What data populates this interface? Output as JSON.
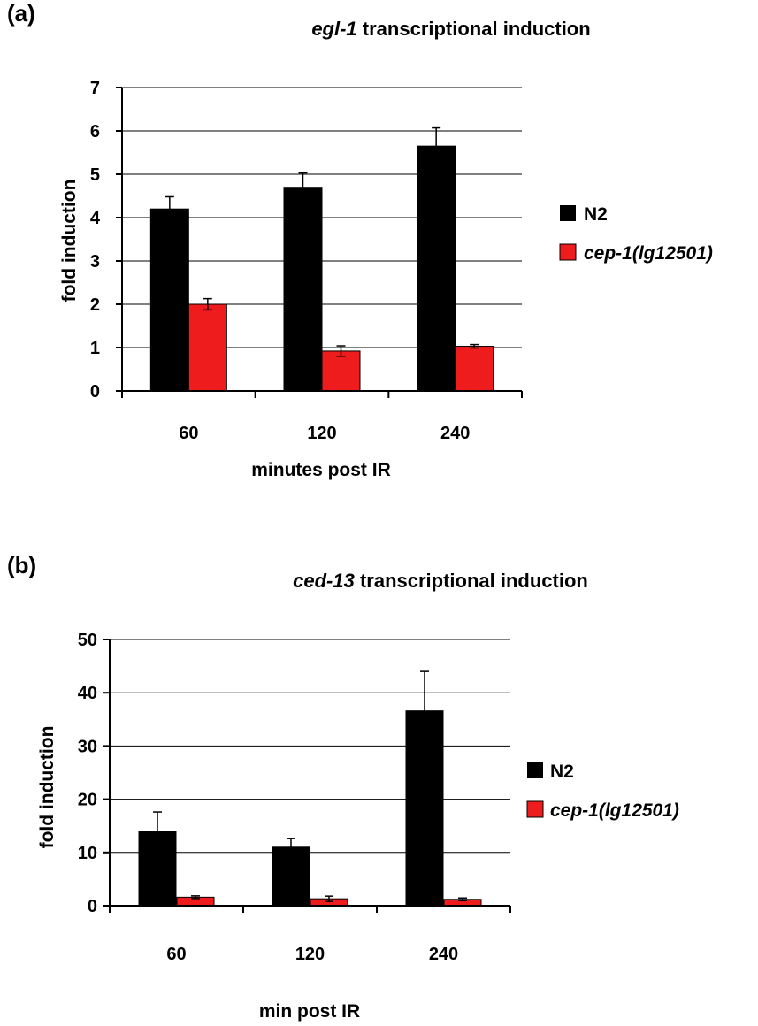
{
  "chart_data": [
    {
      "type": "bar",
      "panel_label": "(a)",
      "title_italic": "egl-1",
      "title_rest": " transcriptional induction",
      "xlabel": "minutes post IR",
      "ylabel": "fold induction",
      "categories": [
        "60",
        "120",
        "240"
      ],
      "ylim": [
        0,
        7
      ],
      "yticks": [
        0,
        1,
        2,
        3,
        4,
        5,
        6,
        7
      ],
      "grid": true,
      "legend_position": "right",
      "series": [
        {
          "name": "N2",
          "italic": false,
          "color": "#000000",
          "values": [
            4.2,
            4.7,
            5.65
          ],
          "errors": [
            0.28,
            0.33,
            0.42
          ]
        },
        {
          "name": "cep-1(lg12501)",
          "italic": true,
          "color": "#ee1c1c",
          "values": [
            2.0,
            0.92,
            1.03
          ],
          "errors": [
            0.13,
            0.12,
            0.04
          ]
        }
      ]
    },
    {
      "type": "bar",
      "panel_label": "(b)",
      "title_italic": "ced-13",
      "title_rest": " transcriptional induction",
      "xlabel": "min post IR",
      "ylabel": "fold induction",
      "categories": [
        "60",
        "120",
        "240"
      ],
      "ylim": [
        0,
        50
      ],
      "yticks": [
        0,
        10,
        20,
        30,
        40,
        50
      ],
      "grid": true,
      "legend_position": "right",
      "series": [
        {
          "name": "N2",
          "italic": false,
          "color": "#000000",
          "values": [
            14.0,
            11.0,
            36.6
          ],
          "errors": [
            3.6,
            1.6,
            7.4
          ]
        },
        {
          "name": "cep-1(lg12501)",
          "italic": true,
          "color": "#ee1c1c",
          "values": [
            1.6,
            1.3,
            1.2
          ],
          "errors": [
            0.25,
            0.5,
            0.25
          ]
        }
      ]
    }
  ]
}
